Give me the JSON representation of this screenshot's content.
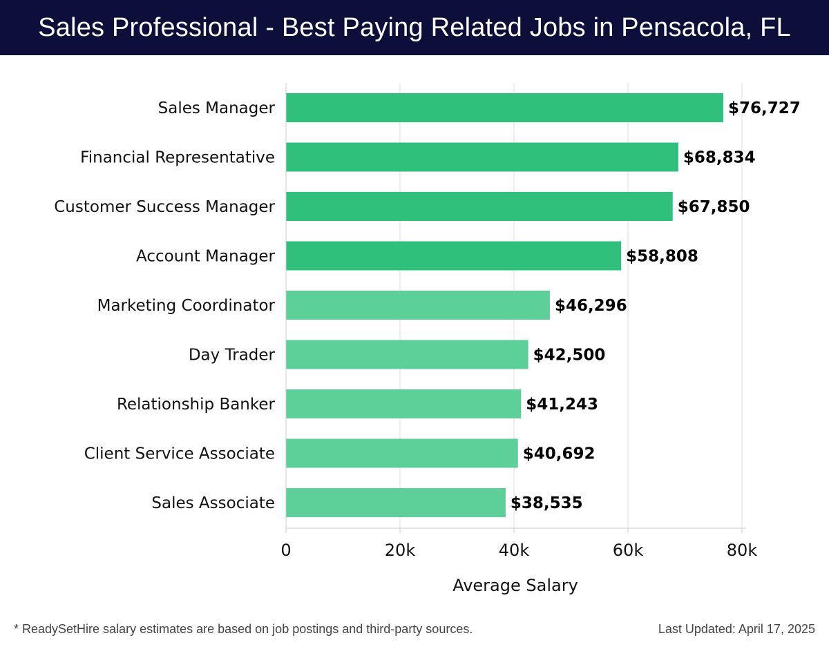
{
  "header": {
    "title": "Sales Professional - Best Paying Related Jobs in Pensacola, FL"
  },
  "chart_data": {
    "type": "bar",
    "orientation": "horizontal",
    "title": "Sales Professional - Best Paying Related Jobs in Pensacola, FL",
    "xlabel": "Average Salary",
    "ylabel": "",
    "xlim": [
      0,
      80000
    ],
    "xticks": [
      0,
      20000,
      40000,
      60000,
      80000
    ],
    "xtick_labels": [
      "0",
      "20k",
      "40k",
      "60k",
      "80k"
    ],
    "grid": "vertical",
    "categories": [
      "Sales Manager",
      "Financial Representative",
      "Customer Success Manager",
      "Account Manager",
      "Marketing Coordinator",
      "Day Trader",
      "Relationship Banker",
      "Client Service Associate",
      "Sales Associate"
    ],
    "values": [
      76727,
      68834,
      67850,
      58808,
      46296,
      42500,
      41243,
      40692,
      38535
    ],
    "value_labels": [
      "$76,727",
      "$68,834",
      "$67,850",
      "$58,808",
      "$46,296",
      "$42,500",
      "$41,243",
      "$40,692",
      "$38,535"
    ],
    "colors": {
      "bar_high": "#2bbf78",
      "bar_low": "#5acf97",
      "grid": "#dddddd",
      "axis": "#cccccc"
    }
  },
  "footer": {
    "note": "* ReadySetHire salary estimates are based on job postings and third-party sources.",
    "updated": "Last Updated: April 17, 2025"
  },
  "colors": {
    "header_bg": "#0d0f3b",
    "header_text": "#ffffff",
    "label_text": "#111111"
  }
}
